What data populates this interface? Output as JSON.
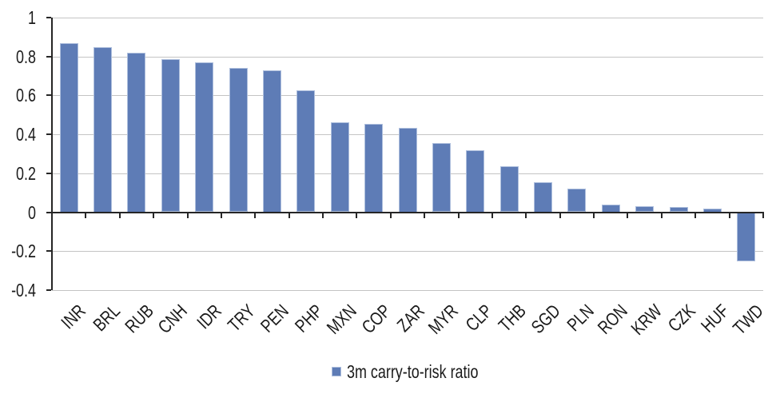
{
  "chart_data": {
    "type": "bar",
    "title": "",
    "xlabel": "",
    "ylabel": "",
    "categories": [
      "INR",
      "BRL",
      "RUB",
      "CNH",
      "IDR",
      "TRY",
      "PEN",
      "PHP",
      "MXN",
      "COP",
      "ZAR",
      "MYR",
      "CLP",
      "THB",
      "SGD",
      "PLN",
      "RON",
      "KRW",
      "CZK",
      "HUF",
      "TWD"
    ],
    "series": [
      {
        "name": "3m carry-to-risk ratio",
        "values": [
          0.87,
          0.85,
          0.82,
          0.785,
          0.77,
          0.74,
          0.73,
          0.625,
          0.46,
          0.455,
          0.435,
          0.355,
          0.32,
          0.235,
          0.155,
          0.12,
          0.04,
          0.03,
          0.025,
          0.02,
          -0.25
        ]
      }
    ],
    "ylim": [
      -0.4,
      1
    ],
    "yticks": [
      1,
      0.8,
      0.6,
      0.4,
      0.2,
      0,
      -0.2,
      -0.4
    ],
    "ytick_labels": [
      "1",
      "0.8",
      "0.6",
      "0.4",
      "0.2",
      "0",
      "-0.2",
      "-0.4"
    ],
    "grid": true,
    "legend_position": "bottom",
    "xtick_label_rotation_deg": 45,
    "bar_color": "#5E7CB6",
    "bar_border_color": "#AEBFDD",
    "axis_color": "#262626",
    "gridline_color": "#C4C4C4",
    "text_color": "#1A1A1A",
    "background_color": "#FFFFFF"
  },
  "legend": {
    "marker_icon": "blue-square-icon",
    "label": "3m carry-to-risk ratio"
  }
}
